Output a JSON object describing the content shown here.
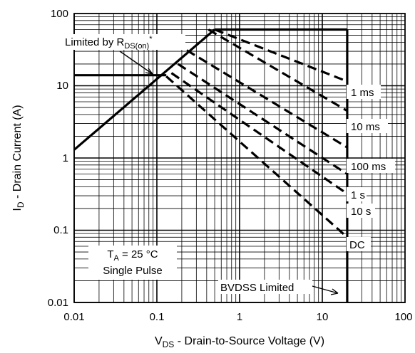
{
  "chart_data": {
    "type": "line",
    "title": "",
    "x_axis": {
      "label_main": "V",
      "label_sub": "DS",
      "label_rest": " - Drain-to-Source Voltage (V)",
      "scale": "log",
      "range": [
        0.01,
        100
      ],
      "ticks": [
        "0.01",
        "0.1",
        "1",
        "10",
        "100"
      ]
    },
    "y_axis": {
      "label_main": "I",
      "label_sub": "D",
      "label_rest": " - Drain Current (A)",
      "scale": "log",
      "range": [
        0.01,
        100
      ],
      "ticks": [
        "100",
        "10",
        "1",
        "0.1",
        "0.01"
      ]
    },
    "grid": true,
    "series": [
      {
        "name": "1 ms",
        "points": [
          [
            0.5,
            60
          ],
          [
            20,
            11.5
          ]
        ]
      },
      {
        "name": "10 ms",
        "points": [
          [
            0.42,
            60
          ],
          [
            20,
            4.5
          ]
        ]
      },
      {
        "name": "100 ms",
        "points": [
          [
            0.23,
            31
          ],
          [
            20,
            1.4
          ]
        ]
      },
      {
        "name": "1 s",
        "points": [
          [
            0.18,
            20
          ],
          [
            20,
            0.6
          ]
        ]
      },
      {
        "name": "10 s",
        "points": [
          [
            0.15,
            15
          ],
          [
            20,
            0.32
          ]
        ]
      },
      {
        "name": "DC",
        "points": [
          [
            0.13,
            13.5
          ],
          [
            20,
            0.08
          ]
        ]
      }
    ],
    "limit_lines": {
      "rds_on": {
        "points": [
          [
            0.01,
            1.3
          ],
          [
            0.5,
            60
          ]
        ]
      },
      "current_limit": {
        "points": [
          [
            0.5,
            60
          ],
          [
            20,
            60
          ]
        ]
      },
      "pulse_current_limit": {
        "points": [
          [
            0.01,
            14
          ],
          [
            0.13,
            14
          ]
        ]
      },
      "bvdss": {
        "points": [
          [
            20,
            0.01
          ],
          [
            20,
            60
          ]
        ]
      }
    },
    "annotations": {
      "rds_main": "Limited by R",
      "rds_sub": "DS(on)",
      "rds_star": "*",
      "ta_main": "T",
      "ta_sub": "A",
      "ta_rest": " = 25 °C",
      "single_pulse": "Single Pulse",
      "bvdss": "BVDSS Limited"
    }
  }
}
